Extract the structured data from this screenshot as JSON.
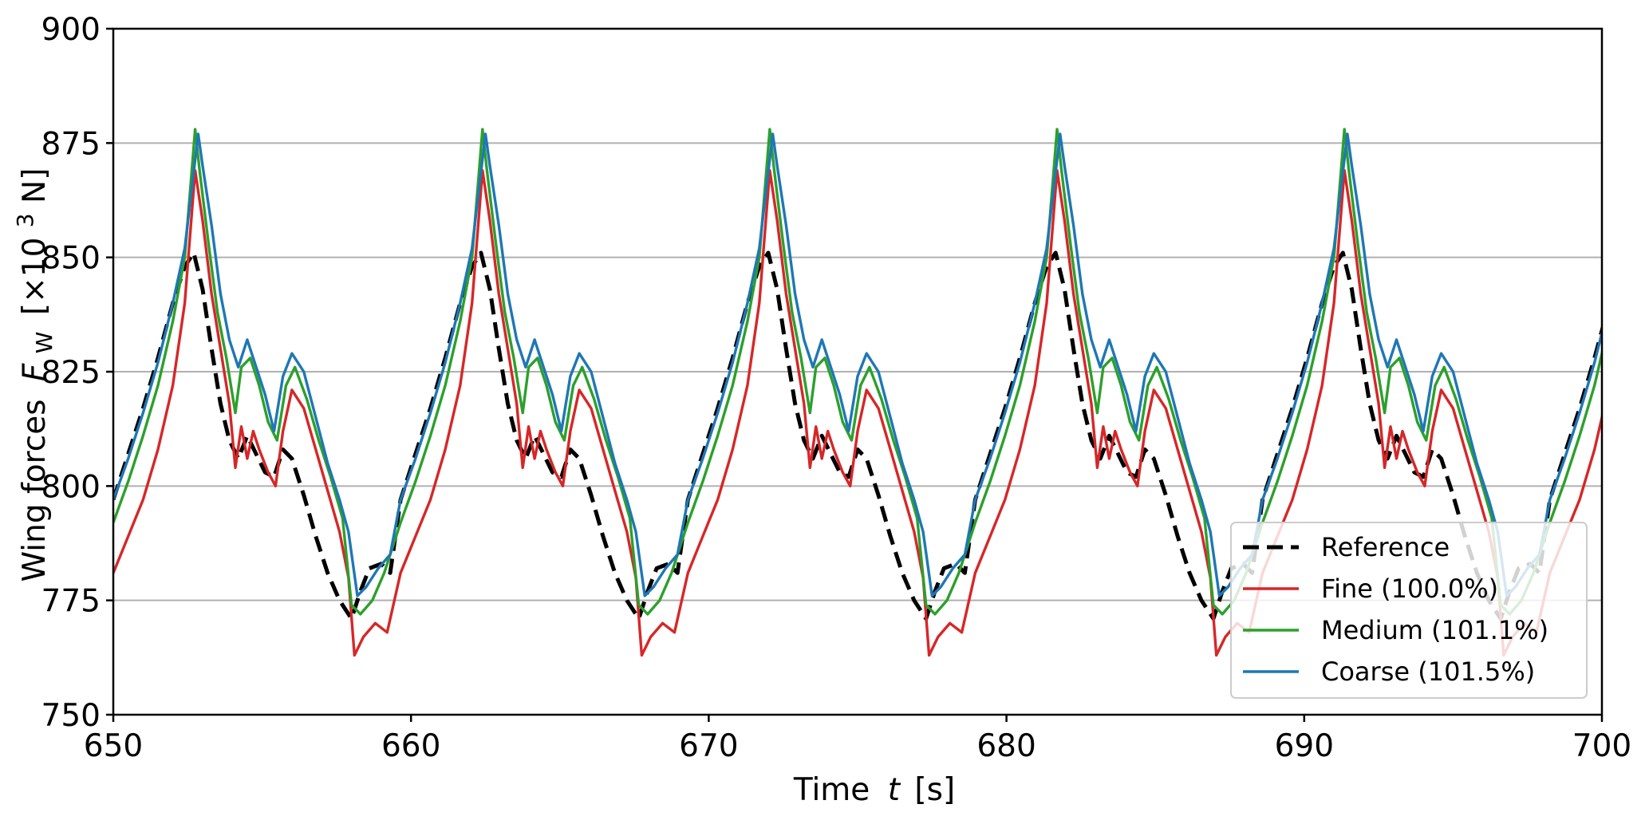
{
  "chart_data": {
    "type": "line",
    "title": "",
    "xlabel": "Time",
    "xlabel_symbol": "t",
    "xlabel_unit": "[s]",
    "ylabel": "Wing forces",
    "ylabel_symbol": "F",
    "ylabel_subscript": "W",
    "ylabel_unit_prefix": "[×10",
    "ylabel_unit_exp": "3",
    "ylabel_unit_suffix": " N]",
    "xlim": [
      650,
      700
    ],
    "ylim": [
      750,
      900
    ],
    "xticks": [
      650,
      660,
      670,
      680,
      690,
      700
    ],
    "yticks": [
      750,
      775,
      800,
      825,
      850,
      875,
      900
    ],
    "grid": "horizontal",
    "legend_position": "lower-right",
    "period": 9.65,
    "series": [
      {
        "name": "Reference",
        "color": "#000000",
        "style": "dashed",
        "x": [
          650.0,
          650.5,
          651.0,
          651.5,
          652.0,
          652.4,
          652.7,
          653.0,
          653.3,
          653.6,
          653.9,
          654.2,
          654.5,
          654.8,
          655.1,
          655.4,
          655.7,
          656.0,
          656.4,
          656.8,
          657.2,
          657.6,
          658.0,
          658.3,
          658.6,
          659.0,
          659.3,
          659.65
        ],
        "values": [
          797,
          807,
          817,
          828,
          840,
          848,
          851,
          843,
          830,
          818,
          810,
          806,
          811,
          807,
          803,
          802,
          808,
          806,
          798,
          789,
          781,
          775,
          771,
          777,
          782,
          783,
          781,
          797
        ]
      },
      {
        "name": "Fine (100.0%)",
        "color": "#d62728",
        "style": "solid",
        "x": [
          650.0,
          650.5,
          651.0,
          651.5,
          652.0,
          652.4,
          652.75,
          653.0,
          653.3,
          653.6,
          653.9,
          654.1,
          654.3,
          654.5,
          654.7,
          654.9,
          655.2,
          655.45,
          655.7,
          656.0,
          656.4,
          656.8,
          657.2,
          657.6,
          657.9,
          658.1,
          658.4,
          658.8,
          659.2,
          659.65
        ],
        "values": [
          781,
          789,
          797,
          808,
          822,
          840,
          869,
          858,
          842,
          830,
          818,
          804,
          813,
          806,
          812,
          808,
          803,
          800,
          812,
          821,
          817,
          808,
          799,
          790,
          780,
          763,
          767,
          770,
          768,
          781
        ]
      },
      {
        "name": "Medium (101.1%)",
        "color": "#2ca02c",
        "style": "solid",
        "x": [
          650.0,
          650.5,
          651.0,
          651.5,
          652.0,
          652.4,
          652.75,
          652.9,
          653.2,
          653.5,
          653.8,
          654.1,
          654.3,
          654.6,
          654.9,
          655.2,
          655.5,
          655.8,
          656.1,
          656.5,
          656.9,
          657.3,
          657.7,
          658.0,
          658.3,
          658.7,
          659.1,
          659.65
        ],
        "values": [
          792,
          801,
          811,
          822,
          836,
          850,
          878,
          869,
          853,
          838,
          828,
          816,
          826,
          828,
          822,
          814,
          810,
          822,
          826,
          819,
          810,
          802,
          793,
          774,
          772,
          775,
          781,
          792
        ]
      },
      {
        "name": "Coarse (101.5%)",
        "color": "#1f77b4",
        "style": "solid",
        "x": [
          650.0,
          650.5,
          651.0,
          651.5,
          652.0,
          652.4,
          652.85,
          653.0,
          653.3,
          653.6,
          653.9,
          654.2,
          654.5,
          654.8,
          655.1,
          655.4,
          655.7,
          656.0,
          656.4,
          656.8,
          657.2,
          657.6,
          657.9,
          658.2,
          658.5,
          658.9,
          659.3,
          659.65
        ],
        "values": [
          797,
          806,
          816,
          827,
          840,
          852,
          877,
          870,
          857,
          842,
          832,
          826,
          832,
          826,
          820,
          812,
          824,
          829,
          825,
          815,
          805,
          797,
          790,
          776,
          778,
          782,
          785,
          797
        ]
      }
    ]
  }
}
